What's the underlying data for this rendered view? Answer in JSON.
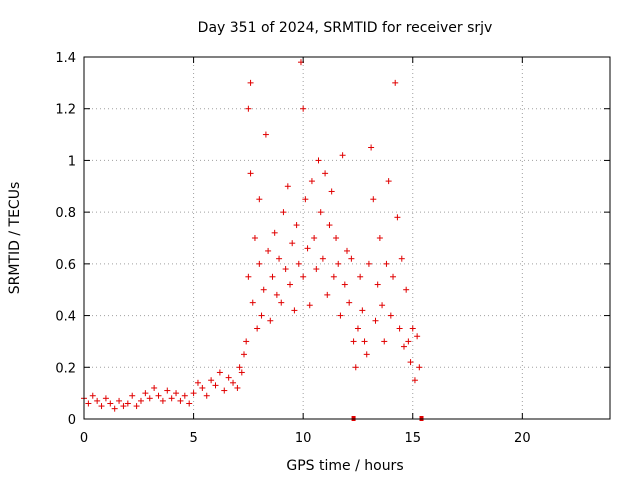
{
  "chart_data": {
    "type": "scatter",
    "title": "Day 351 of 2024, SRMTID for receiver srjv",
    "xlabel": "GPS time / hours",
    "ylabel": "SRMTID / TECUs",
    "xlim": [
      0,
      24
    ],
    "ylim": [
      0,
      1.4
    ],
    "x_ticks": [
      0,
      5,
      10,
      15,
      20
    ],
    "x_tick_labels": [
      "0",
      "5",
      "10",
      "15",
      "20"
    ],
    "y_ticks": [
      0,
      0.2,
      0.4,
      0.6,
      0.8,
      1.0,
      1.2,
      1.4
    ],
    "y_tick_labels": [
      "0",
      "0.2",
      "0.4",
      "0.6",
      "0.8",
      "1",
      "1.2",
      "1.4"
    ],
    "grid": true,
    "marker": "plus",
    "color": "#e00000",
    "series": [
      {
        "name": "SRMTID",
        "x": [
          0.0,
          0.2,
          0.4,
          0.6,
          0.8,
          1.0,
          1.2,
          1.4,
          1.6,
          1.8,
          2.0,
          2.2,
          2.4,
          2.6,
          2.8,
          3.0,
          3.2,
          3.4,
          3.6,
          3.8,
          4.0,
          4.2,
          4.4,
          4.6,
          4.8,
          5.0,
          5.2,
          5.4,
          5.6,
          5.8,
          6.0,
          6.2,
          6.4,
          6.6,
          6.8,
          7.0,
          7.1,
          7.2,
          7.3,
          7.4,
          7.5,
          7.5,
          7.6,
          7.6,
          7.7,
          7.8,
          7.9,
          8.0,
          8.0,
          8.1,
          8.2,
          8.3,
          8.4,
          8.5,
          8.6,
          8.7,
          8.8,
          8.9,
          9.0,
          9.1,
          9.2,
          9.3,
          9.4,
          9.5,
          9.6,
          9.7,
          9.8,
          9.9,
          10.0,
          10.0,
          10.1,
          10.2,
          10.3,
          10.4,
          10.5,
          10.6,
          10.7,
          10.8,
          10.9,
          11.0,
          11.1,
          11.2,
          11.3,
          11.4,
          11.5,
          11.6,
          11.7,
          11.8,
          11.9,
          12.0,
          12.1,
          12.2,
          12.3,
          12.4,
          12.5,
          12.6,
          12.7,
          12.8,
          12.9,
          13.0,
          13.1,
          13.2,
          13.3,
          13.4,
          13.5,
          13.6,
          13.7,
          13.8,
          13.9,
          14.0,
          14.1,
          14.2,
          14.3,
          14.4,
          14.5,
          14.6,
          14.7,
          14.8,
          14.9,
          15.0,
          15.1,
          15.2,
          15.3
        ],
        "y": [
          0.08,
          0.06,
          0.09,
          0.07,
          0.05,
          0.08,
          0.06,
          0.04,
          0.07,
          0.05,
          0.06,
          0.09,
          0.05,
          0.07,
          0.1,
          0.08,
          0.12,
          0.09,
          0.07,
          0.11,
          0.08,
          0.1,
          0.07,
          0.09,
          0.06,
          0.1,
          0.14,
          0.12,
          0.09,
          0.15,
          0.13,
          0.18,
          0.11,
          0.16,
          0.14,
          0.12,
          0.2,
          0.18,
          0.25,
          0.3,
          0.55,
          1.2,
          1.3,
          0.95,
          0.45,
          0.7,
          0.35,
          0.6,
          0.85,
          0.4,
          0.5,
          1.1,
          0.65,
          0.38,
          0.55,
          0.72,
          0.48,
          0.62,
          0.45,
          0.8,
          0.58,
          0.9,
          0.52,
          0.68,
          0.42,
          0.75,
          0.6,
          1.38,
          1.2,
          0.55,
          0.85,
          0.66,
          0.44,
          0.92,
          0.7,
          0.58,
          1.0,
          0.8,
          0.62,
          0.95,
          0.48,
          0.75,
          0.88,
          0.55,
          0.7,
          0.6,
          0.4,
          1.02,
          0.52,
          0.65,
          0.45,
          0.62,
          0.3,
          0.2,
          0.35,
          0.55,
          0.42,
          0.3,
          0.25,
          0.6,
          1.05,
          0.85,
          0.38,
          0.52,
          0.7,
          0.44,
          0.3,
          0.6,
          0.92,
          0.4,
          0.55,
          1.3,
          0.78,
          0.35,
          0.62,
          0.28,
          0.5,
          0.3,
          0.22,
          0.35,
          0.15,
          0.32,
          0.2
        ]
      }
    ],
    "baseline_marks_x": [
      12.3,
      15.4
    ]
  }
}
